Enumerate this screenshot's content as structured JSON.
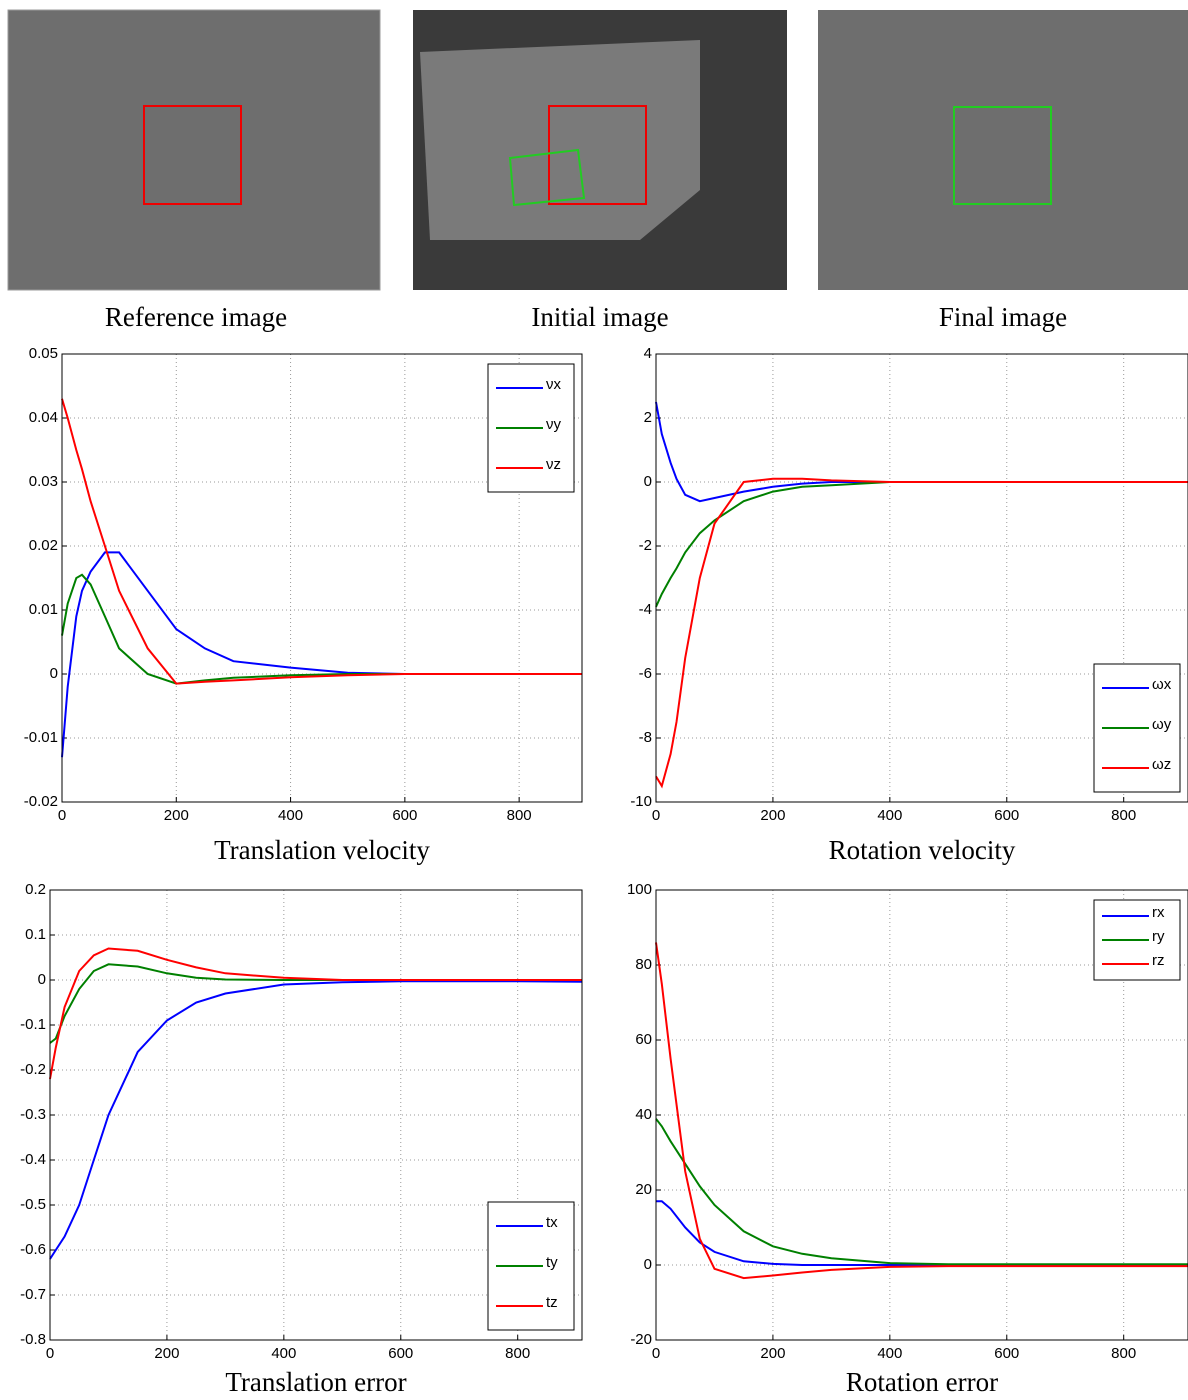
{
  "images": [
    {
      "caption": "Reference image"
    },
    {
      "caption": "Initial image"
    },
    {
      "caption": "Final image"
    }
  ],
  "chart_data": [
    {
      "type": "line",
      "title": "Translation velocity",
      "x": [
        0,
        10,
        25,
        35,
        50,
        75,
        100,
        150,
        200,
        250,
        300,
        400,
        500,
        600,
        800,
        910
      ],
      "series": [
        {
          "name": "νx",
          "color": "#0000ff",
          "values": [
            -0.013,
            -0.002,
            0.009,
            0.013,
            0.016,
            0.019,
            0.019,
            0.013,
            0.007,
            0.004,
            0.002,
            0.001,
            0.0002,
            0,
            0,
            0
          ]
        },
        {
          "name": "νy",
          "color": "#008000",
          "values": [
            0.006,
            0.011,
            0.015,
            0.0155,
            0.014,
            0.009,
            0.004,
            0,
            -0.0015,
            -0.001,
            -0.0006,
            -0.0002,
            0,
            0,
            0,
            0
          ]
        },
        {
          "name": "νz",
          "color": "#ff0000",
          "values": [
            0.043,
            0.04,
            0.035,
            0.032,
            0.027,
            0.02,
            0.013,
            0.004,
            -0.0015,
            -0.0012,
            -0.001,
            -0.0005,
            -0.0002,
            0,
            0,
            0
          ]
        }
      ],
      "xlim": [
        0,
        910
      ],
      "xticks": [
        0,
        200,
        400,
        600,
        800
      ],
      "ylim": [
        -0.02,
        0.05
      ],
      "yticks": [
        -0.02,
        -0.01,
        0,
        0.01,
        0.02,
        0.03,
        0.04,
        0.05
      ],
      "grid": true,
      "legend": "upper right"
    },
    {
      "type": "line",
      "title": "Rotation velocity",
      "x": [
        0,
        10,
        25,
        35,
        50,
        75,
        100,
        150,
        200,
        250,
        300,
        400,
        500,
        600,
        800,
        910
      ],
      "series": [
        {
          "name": "ωx",
          "color": "#0000ff",
          "values": [
            2.5,
            1.5,
            0.6,
            0.1,
            -0.4,
            -0.6,
            -0.5,
            -0.3,
            -0.15,
            -0.05,
            0,
            0,
            0,
            0,
            0,
            0
          ]
        },
        {
          "name": "ωy",
          "color": "#008000",
          "values": [
            -3.9,
            -3.5,
            -3,
            -2.7,
            -2.2,
            -1.6,
            -1.2,
            -0.6,
            -0.3,
            -0.15,
            -0.1,
            0,
            0,
            0,
            0,
            0
          ]
        },
        {
          "name": "ωz",
          "color": "#ff0000",
          "values": [
            -9.2,
            -9.5,
            -8.5,
            -7.5,
            -5.5,
            -3,
            -1.3,
            0,
            0.1,
            0.1,
            0.05,
            0,
            0,
            0,
            0,
            0
          ]
        }
      ],
      "xlim": [
        0,
        910
      ],
      "xticks": [
        0,
        200,
        400,
        600,
        800
      ],
      "ylim": [
        -10,
        4
      ],
      "yticks": [
        -10,
        -8,
        -6,
        -4,
        -2,
        0,
        2,
        4
      ],
      "grid": true,
      "legend": "lower right"
    },
    {
      "type": "line",
      "title": "Translation error",
      "x": [
        0,
        10,
        25,
        50,
        75,
        100,
        150,
        200,
        250,
        300,
        400,
        500,
        600,
        800,
        910
      ],
      "series": [
        {
          "name": "tx",
          "color": "#0000ff",
          "values": [
            -0.62,
            -0.6,
            -0.57,
            -0.5,
            -0.4,
            -0.3,
            -0.16,
            -0.09,
            -0.05,
            -0.03,
            -0.01,
            -0.005,
            -0.003,
            -0.003,
            -0.004
          ]
        },
        {
          "name": "ty",
          "color": "#008000",
          "values": [
            -0.14,
            -0.13,
            -0.08,
            -0.02,
            0.02,
            0.035,
            0.03,
            0.015,
            0.005,
            0.001,
            0,
            0,
            0,
            0,
            0
          ]
        },
        {
          "name": "tz",
          "color": "#ff0000",
          "values": [
            -0.22,
            -0.15,
            -0.06,
            0.02,
            0.055,
            0.07,
            0.065,
            0.045,
            0.028,
            0.015,
            0.005,
            0,
            0,
            0,
            0
          ]
        }
      ],
      "xlim": [
        0,
        910
      ],
      "xticks": [
        0,
        200,
        400,
        600,
        800
      ],
      "ylim": [
        -0.8,
        0.2
      ],
      "yticks": [
        -0.8,
        -0.7,
        -0.6,
        -0.5,
        -0.4,
        -0.3,
        -0.2,
        -0.1,
        0,
        0.1,
        0.2
      ],
      "grid": true,
      "legend": "lower right"
    },
    {
      "type": "line",
      "title": "Rotation error",
      "x": [
        0,
        10,
        25,
        50,
        75,
        100,
        150,
        200,
        250,
        300,
        400,
        500,
        600,
        800,
        910
      ],
      "series": [
        {
          "name": "rx",
          "color": "#0000ff",
          "values": [
            17,
            17,
            15,
            10,
            6,
            3.5,
            1,
            0.3,
            0,
            0,
            0,
            0,
            0,
            0,
            0
          ]
        },
        {
          "name": "ry",
          "color": "#008000",
          "values": [
            39,
            37,
            33,
            27,
            21,
            16,
            9,
            5,
            3,
            1.8,
            0.5,
            0.2,
            0.2,
            0.2,
            0.2
          ]
        },
        {
          "name": "rz",
          "color": "#ff0000",
          "values": [
            86,
            75,
            55,
            25,
            7,
            -1,
            -3.5,
            -2.8,
            -2,
            -1.3,
            -0.5,
            -0.3,
            -0.3,
            -0.3,
            -0.3
          ]
        }
      ],
      "xlim": [
        0,
        910
      ],
      "xticks": [
        0,
        200,
        400,
        600,
        800
      ],
      "ylim": [
        -20,
        100
      ],
      "yticks": [
        -20,
        0,
        20,
        40,
        60,
        80,
        100
      ],
      "grid": true,
      "legend": "upper right"
    }
  ]
}
